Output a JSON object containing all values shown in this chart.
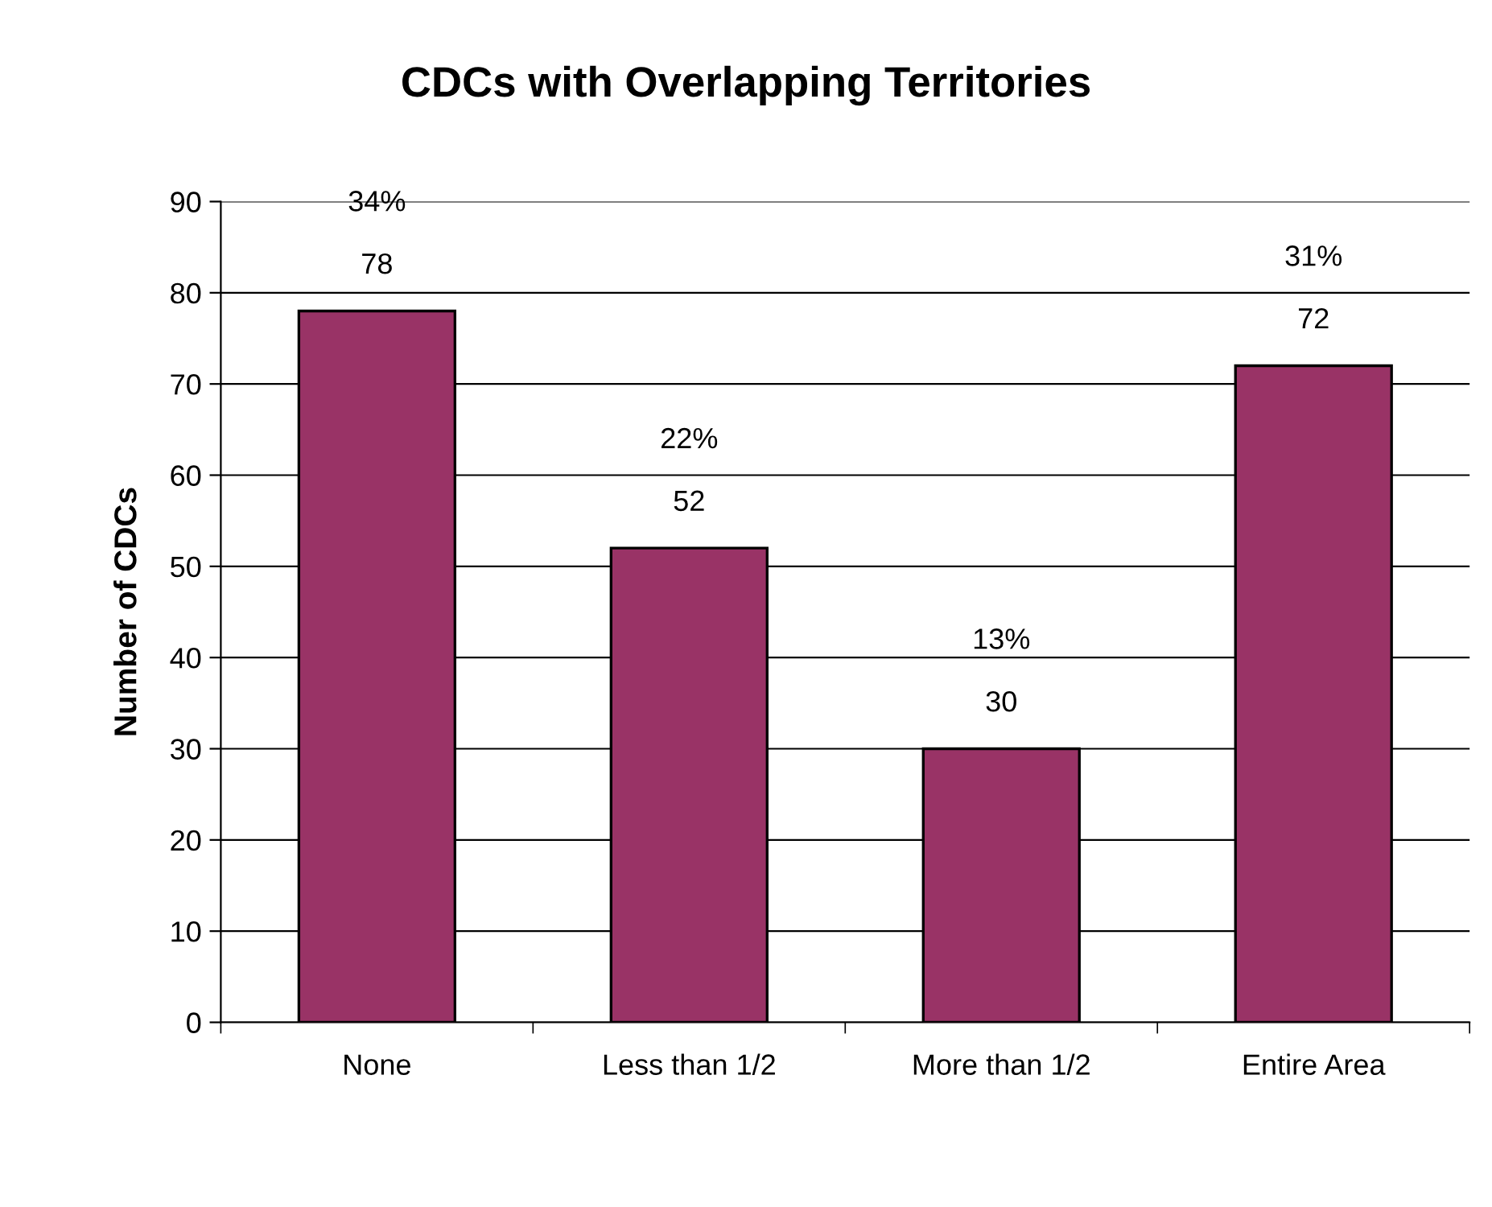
{
  "chart_data": {
    "type": "bar",
    "title": "CDCs with Overlapping Territories",
    "ylabel": "Number of CDCs",
    "categories": [
      "None",
      "Less than 1/2",
      "More than 1/2",
      "Entire Area"
    ],
    "values": [
      78,
      52,
      30,
      72
    ],
    "color": "#993366",
    "data_labels": true,
    "annotations": [
      "34%",
      "22%",
      "13%",
      "31%"
    ],
    "ylim": [
      0,
      90
    ],
    "yticks": [
      0,
      10,
      20,
      30,
      40,
      50,
      60,
      70,
      80,
      90
    ],
    "grid": "y",
    "legend": false
  }
}
